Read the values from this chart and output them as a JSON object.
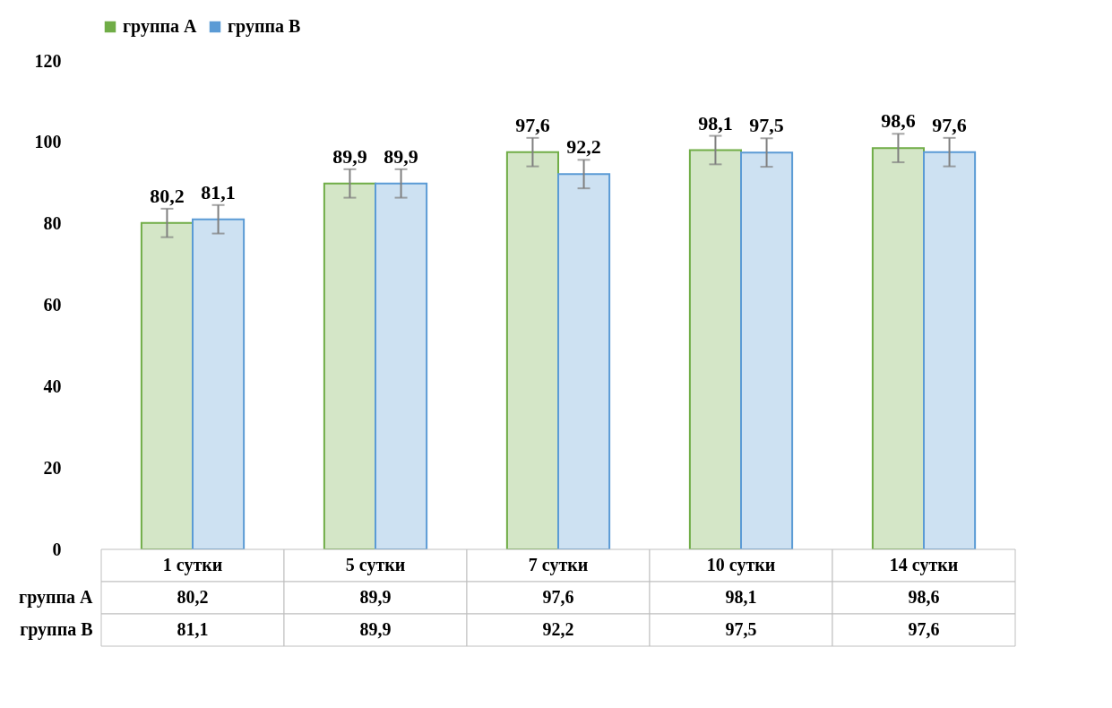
{
  "chart_data": {
    "type": "bar",
    "categories": [
      "1 сутки",
      "5 сутки",
      "7 сутки",
      "10 сутки",
      "14 сутки"
    ],
    "series": [
      {
        "name": "группа A",
        "color": "#70ad47",
        "values": [
          80.2,
          89.9,
          97.6,
          98.1,
          98.6
        ],
        "value_labels": [
          "80,2",
          "89,9",
          "97,6",
          "98,1",
          "98,6"
        ],
        "errors": [
          3.5,
          3.5,
          3.5,
          3.5,
          3.5
        ]
      },
      {
        "name": "группа B",
        "color": "#5b9bd5",
        "values": [
          81.1,
          89.9,
          92.2,
          97.5,
          97.6
        ],
        "value_labels": [
          "81,1",
          "89,9",
          "92,2",
          "97,5",
          "97,6"
        ],
        "errors": [
          3.5,
          3.5,
          3.5,
          3.5,
          3.5
        ]
      }
    ],
    "ylim": [
      0,
      120
    ],
    "yticks": [
      0,
      20,
      40,
      60,
      80,
      100,
      120
    ],
    "legend": "top"
  }
}
